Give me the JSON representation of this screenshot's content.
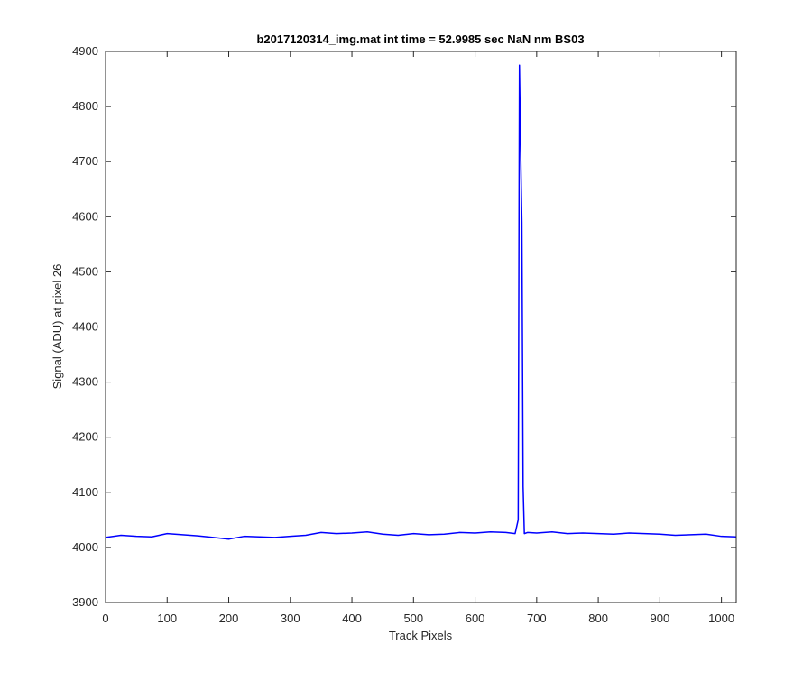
{
  "chart_data": {
    "type": "line",
    "title": "b2017120314_img.mat int time = 52.9985 sec   NaN nm BS03",
    "xlabel": "Track Pixels",
    "ylabel": "Signal (ADU) at pixel 26",
    "xlim": [
      0,
      1024
    ],
    "ylim": [
      3900,
      4900
    ],
    "xticks": [
      0,
      100,
      200,
      300,
      400,
      500,
      600,
      700,
      800,
      900,
      1000
    ],
    "yticks": [
      3900,
      4000,
      4100,
      4200,
      4300,
      4400,
      4500,
      4600,
      4700,
      4800,
      4900
    ],
    "grid": false,
    "legend": "none",
    "line_color": "#0000ff",
    "series": [
      {
        "x": [
          0,
          25,
          50,
          75,
          100,
          125,
          150,
          175,
          200,
          225,
          250,
          275,
          300,
          325,
          350,
          375,
          400,
          425,
          450,
          475,
          500,
          525,
          550,
          575,
          600,
          625,
          650,
          665,
          670,
          672,
          674,
          676,
          678,
          680,
          685,
          700,
          725,
          750,
          775,
          800,
          825,
          850,
          875,
          900,
          925,
          950,
          975,
          1000,
          1024
        ],
        "values": [
          4018,
          4022,
          4020,
          4019,
          4025,
          4023,
          4021,
          4018,
          4015,
          4020,
          4019,
          4018,
          4020,
          4022,
          4027,
          4025,
          4026,
          4028,
          4024,
          4022,
          4025,
          4023,
          4024,
          4027,
          4026,
          4028,
          4027,
          4025,
          4050,
          4875,
          4720,
          4590,
          4110,
          4025,
          4027,
          4026,
          4028,
          4025,
          4026,
          4025,
          4024,
          4026,
          4025,
          4024,
          4022,
          4023,
          4024,
          4020,
          4019
        ]
      }
    ]
  }
}
